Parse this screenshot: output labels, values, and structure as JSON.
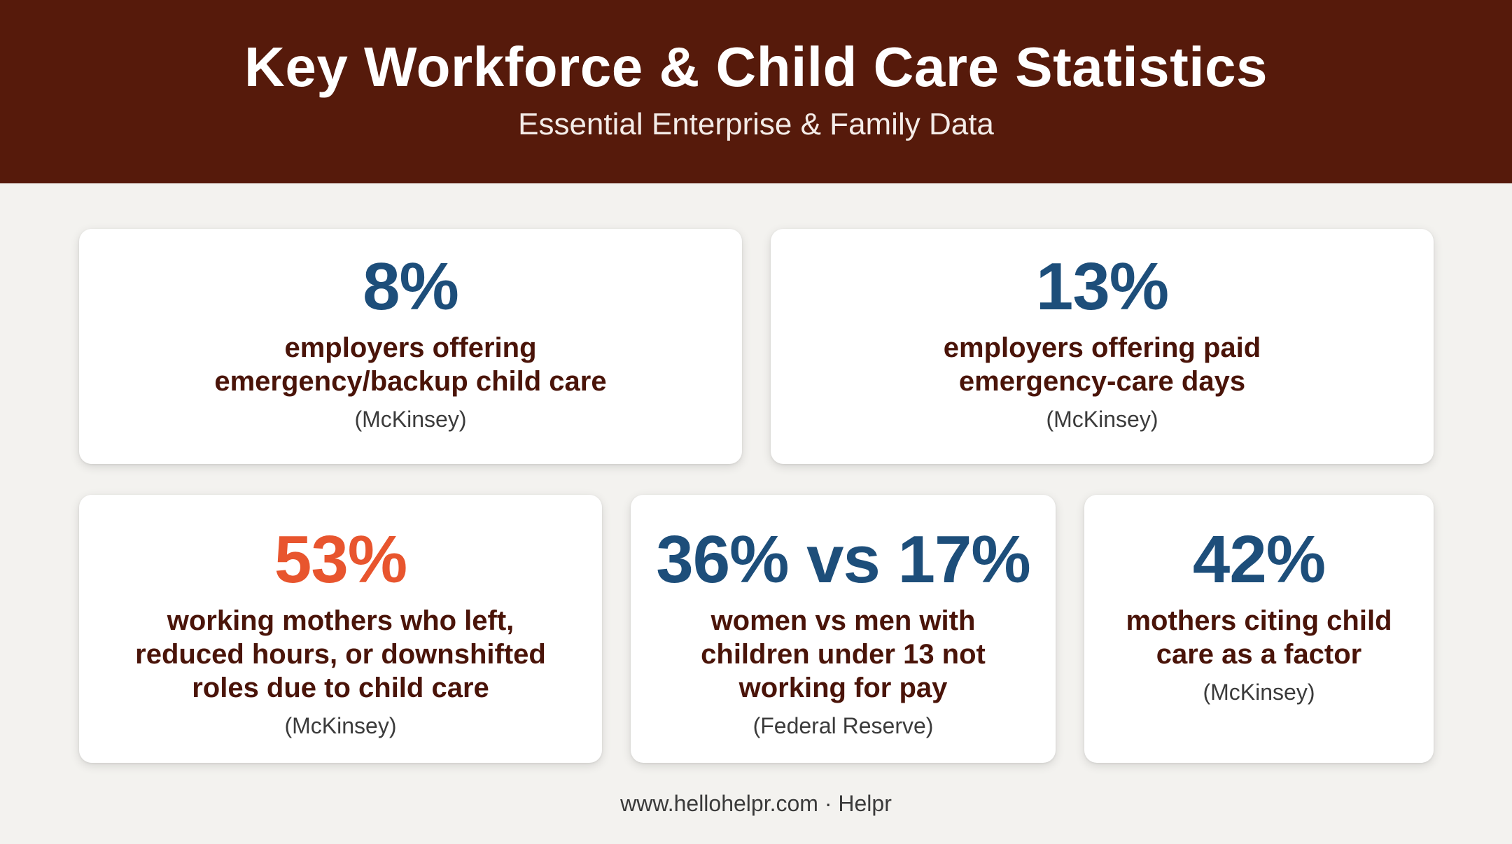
{
  "header": {
    "title": "Key Workforce & Child Care Statistics",
    "subtitle": "Essential Enterprise & Family Data"
  },
  "stats": [
    {
      "value": "8%",
      "line1": "employers offering",
      "line2": "emergency/backup child care",
      "source": "(McKinsey)",
      "color": "#1d4e7a"
    },
    {
      "value": "13%",
      "line1": "employers offering paid",
      "line2": "emergency-care days",
      "source": "(McKinsey)",
      "color": "#1d4e7a"
    },
    {
      "value": "53%",
      "line1": "working mothers who left,",
      "line2": "reduced hours, or downshifted",
      "line3": "roles due to child care",
      "source": "(McKinsey)",
      "color": "#e8552e"
    },
    {
      "value": "36% vs 17%",
      "line1": "women vs men with",
      "line2": "children under 13 not",
      "line3": "working for pay",
      "source": "(Federal Reserve)",
      "color": "#1d4e7a"
    },
    {
      "value": "42%",
      "line1": "mothers citing child",
      "line2": "care as a factor",
      "source": "(McKinsey)",
      "color": "#1d4e7a"
    }
  ],
  "footer": {
    "text": "www.hellohelpr.com · Helpr"
  },
  "colors": {
    "header_bg": "#561a0b",
    "page_bg": "#f3f2ef",
    "stat_blue": "#1d4e7a",
    "stat_orange": "#e8552e",
    "desc_text": "#4a1409"
  }
}
